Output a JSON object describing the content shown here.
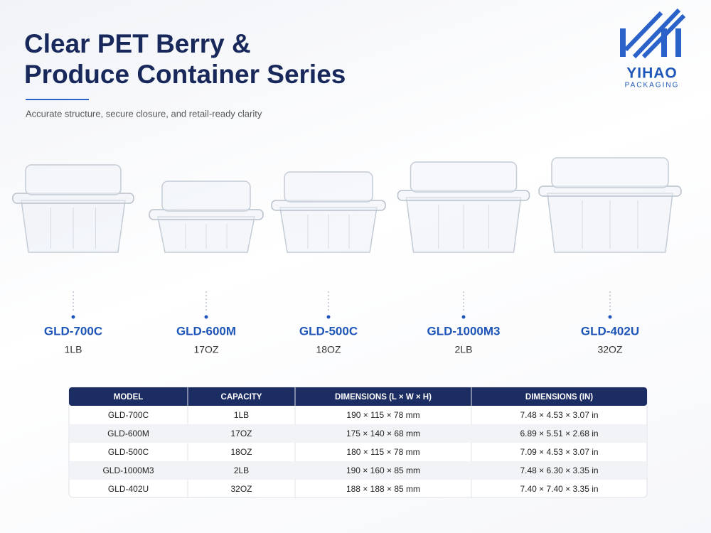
{
  "header": {
    "title_lines": [
      "Clear PET Berry &",
      "Produce Container Series"
    ],
    "subtitle": "Accurate structure, secure closure, and retail-ready clarity"
  },
  "logo": {
    "brand": "YIHAO",
    "tagline": "PACKAGING"
  },
  "products": [
    {
      "model": "GLD-700C",
      "capacity": "1LB"
    },
    {
      "model": "GLD-600M",
      "capacity": "17OZ"
    },
    {
      "model": "GLD-500C",
      "capacity": "18OZ"
    },
    {
      "model": "GLD-1000M3",
      "capacity": "2LB"
    },
    {
      "model": "GLD-402U",
      "capacity": "32OZ"
    }
  ],
  "table": {
    "headers": [
      "MODEL",
      "CAPACITY",
      "DIMENSIONS (L × W × H)",
      "DIMENSIONS (IN)"
    ],
    "rows": [
      [
        "GLD-700C",
        "1LB",
        "190 × 115 × 78 mm",
        "7.48 × 4.53 × 3.07 in"
      ],
      [
        "GLD-600M",
        "17OZ",
        "175 × 140 × 68 mm",
        "6.89 × 5.51 × 2.68 in"
      ],
      [
        "GLD-500C",
        "18OZ",
        "180 × 115 × 78 mm",
        "7.09 × 4.53 × 3.07 in"
      ],
      [
        "GLD-1000M3",
        "2LB",
        "190 × 160 × 85 mm",
        "7.48 × 6.30 × 3.35 in"
      ],
      [
        "GLD-402U",
        "32OZ",
        "188 × 188 × 85 mm",
        "7.40 × 7.40 × 3.35 in"
      ]
    ]
  }
}
